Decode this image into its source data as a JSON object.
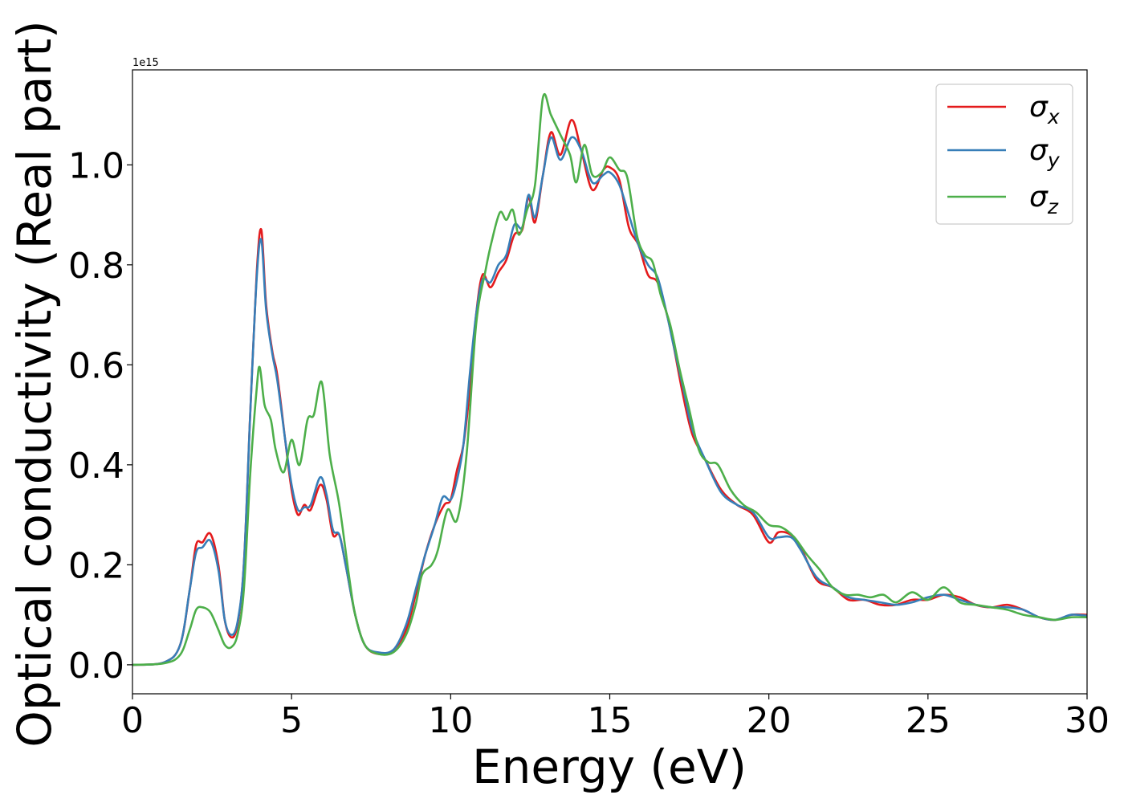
{
  "chart_data": {
    "type": "line",
    "xlabel": "Energy (eV)",
    "ylabel": "Optical conductivity (Real part)",
    "offset_text": "1e15",
    "xlim": [
      0,
      30
    ],
    "ylim": [
      -0.058,
      1.19
    ],
    "y_scale_factor": 1000000000000000.0,
    "xticks": [
      0,
      5,
      10,
      15,
      20,
      25,
      30
    ],
    "xtick_labels": [
      "0",
      "5",
      "10",
      "15",
      "20",
      "25",
      "30"
    ],
    "yticks": [
      0.0,
      0.2,
      0.4,
      0.6,
      0.8,
      1.0
    ],
    "ytick_labels": [
      "0.0",
      "0.2",
      "0.4",
      "0.6",
      "0.8",
      "1.0"
    ],
    "grid": false,
    "legend_position": "top-right",
    "legend": [
      {
        "symbol": "σ",
        "subscript": "x",
        "color": "#e41a1c"
      },
      {
        "symbol": "σ",
        "subscript": "y",
        "color": "#377eb8"
      },
      {
        "symbol": "σ",
        "subscript": "z",
        "color": "#4daf4a"
      }
    ],
    "series": [
      {
        "name": "σx",
        "color": "#e41a1c",
        "points": [
          [
            0,
            0
          ],
          [
            1,
            0.005
          ],
          [
            1.5,
            0.04
          ],
          [
            1.8,
            0.15
          ],
          [
            2.0,
            0.24
          ],
          [
            2.2,
            0.245
          ],
          [
            2.45,
            0.262
          ],
          [
            2.7,
            0.2
          ],
          [
            2.9,
            0.09
          ],
          [
            3.1,
            0.055
          ],
          [
            3.3,
            0.08
          ],
          [
            3.5,
            0.2
          ],
          [
            3.7,
            0.5
          ],
          [
            3.9,
            0.78
          ],
          [
            4.05,
            0.87
          ],
          [
            4.2,
            0.72
          ],
          [
            4.4,
            0.625
          ],
          [
            4.55,
            0.58
          ],
          [
            4.8,
            0.45
          ],
          [
            5.0,
            0.35
          ],
          [
            5.2,
            0.3
          ],
          [
            5.4,
            0.32
          ],
          [
            5.6,
            0.31
          ],
          [
            5.9,
            0.36
          ],
          [
            6.1,
            0.33
          ],
          [
            6.3,
            0.26
          ],
          [
            6.5,
            0.26
          ],
          [
            6.7,
            0.2
          ],
          [
            7.0,
            0.1
          ],
          [
            7.3,
            0.04
          ],
          [
            7.7,
            0.022
          ],
          [
            8.2,
            0.03
          ],
          [
            8.6,
            0.07
          ],
          [
            8.9,
            0.14
          ],
          [
            9.2,
            0.22
          ],
          [
            9.5,
            0.28
          ],
          [
            9.8,
            0.32
          ],
          [
            10.0,
            0.33
          ],
          [
            10.2,
            0.39
          ],
          [
            10.4,
            0.44
          ],
          [
            10.6,
            0.55
          ],
          [
            10.8,
            0.7
          ],
          [
            11.0,
            0.78
          ],
          [
            11.25,
            0.755
          ],
          [
            11.5,
            0.785
          ],
          [
            11.75,
            0.81
          ],
          [
            12.0,
            0.86
          ],
          [
            12.25,
            0.87
          ],
          [
            12.45,
            0.935
          ],
          [
            12.65,
            0.885
          ],
          [
            12.9,
            0.98
          ],
          [
            13.15,
            1.065
          ],
          [
            13.45,
            1.02
          ],
          [
            13.8,
            1.09
          ],
          [
            14.1,
            1.03
          ],
          [
            14.45,
            0.95
          ],
          [
            14.8,
            0.99
          ],
          [
            15.0,
            0.995
          ],
          [
            15.3,
            0.97
          ],
          [
            15.6,
            0.875
          ],
          [
            15.9,
            0.84
          ],
          [
            16.2,
            0.78
          ],
          [
            16.5,
            0.765
          ],
          [
            16.8,
            0.7
          ],
          [
            17.0,
            0.64
          ],
          [
            17.3,
            0.54
          ],
          [
            17.6,
            0.46
          ],
          [
            18.0,
            0.41
          ],
          [
            18.5,
            0.35
          ],
          [
            19.0,
            0.32
          ],
          [
            19.5,
            0.3
          ],
          [
            20.0,
            0.245
          ],
          [
            20.3,
            0.265
          ],
          [
            20.7,
            0.26
          ],
          [
            21.0,
            0.235
          ],
          [
            21.5,
            0.17
          ],
          [
            22.0,
            0.155
          ],
          [
            22.5,
            0.13
          ],
          [
            23.0,
            0.13
          ],
          [
            23.5,
            0.12
          ],
          [
            24.0,
            0.12
          ],
          [
            24.5,
            0.13
          ],
          [
            25.0,
            0.13
          ],
          [
            25.5,
            0.14
          ],
          [
            26.0,
            0.135
          ],
          [
            26.5,
            0.12
          ],
          [
            27.0,
            0.115
          ],
          [
            27.5,
            0.12
          ],
          [
            28.0,
            0.11
          ],
          [
            28.5,
            0.095
          ],
          [
            29.0,
            0.09
          ],
          [
            29.5,
            0.1
          ],
          [
            30.0,
            0.1
          ]
        ]
      },
      {
        "name": "σy",
        "color": "#377eb8",
        "points": [
          [
            0,
            0
          ],
          [
            1,
            0.005
          ],
          [
            1.5,
            0.04
          ],
          [
            1.8,
            0.15
          ],
          [
            2.0,
            0.225
          ],
          [
            2.2,
            0.235
          ],
          [
            2.45,
            0.248
          ],
          [
            2.7,
            0.19
          ],
          [
            2.9,
            0.09
          ],
          [
            3.1,
            0.06
          ],
          [
            3.3,
            0.085
          ],
          [
            3.5,
            0.2
          ],
          [
            3.7,
            0.5
          ],
          [
            3.9,
            0.77
          ],
          [
            4.05,
            0.85
          ],
          [
            4.2,
            0.71
          ],
          [
            4.4,
            0.62
          ],
          [
            4.55,
            0.57
          ],
          [
            4.8,
            0.45
          ],
          [
            5.0,
            0.36
          ],
          [
            5.2,
            0.31
          ],
          [
            5.4,
            0.315
          ],
          [
            5.6,
            0.32
          ],
          [
            5.9,
            0.375
          ],
          [
            6.1,
            0.34
          ],
          [
            6.3,
            0.27
          ],
          [
            6.5,
            0.26
          ],
          [
            6.7,
            0.2
          ],
          [
            7.0,
            0.1
          ],
          [
            7.3,
            0.04
          ],
          [
            7.7,
            0.025
          ],
          [
            8.2,
            0.03
          ],
          [
            8.6,
            0.08
          ],
          [
            8.9,
            0.15
          ],
          [
            9.2,
            0.22
          ],
          [
            9.5,
            0.28
          ],
          [
            9.75,
            0.335
          ],
          [
            10.0,
            0.33
          ],
          [
            10.2,
            0.37
          ],
          [
            10.4,
            0.44
          ],
          [
            10.6,
            0.58
          ],
          [
            10.8,
            0.7
          ],
          [
            11.0,
            0.77
          ],
          [
            11.25,
            0.765
          ],
          [
            11.5,
            0.8
          ],
          [
            11.75,
            0.82
          ],
          [
            12.0,
            0.88
          ],
          [
            12.25,
            0.875
          ],
          [
            12.45,
            0.94
          ],
          [
            12.65,
            0.895
          ],
          [
            12.9,
            0.98
          ],
          [
            13.15,
            1.055
          ],
          [
            13.45,
            1.01
          ],
          [
            13.8,
            1.055
          ],
          [
            14.1,
            1.03
          ],
          [
            14.45,
            0.965
          ],
          [
            14.8,
            0.98
          ],
          [
            15.0,
            0.985
          ],
          [
            15.3,
            0.96
          ],
          [
            15.6,
            0.9
          ],
          [
            15.9,
            0.84
          ],
          [
            16.2,
            0.8
          ],
          [
            16.5,
            0.775
          ],
          [
            16.8,
            0.7
          ],
          [
            17.0,
            0.64
          ],
          [
            17.3,
            0.555
          ],
          [
            17.6,
            0.47
          ],
          [
            18.0,
            0.41
          ],
          [
            18.5,
            0.345
          ],
          [
            19.0,
            0.32
          ],
          [
            19.5,
            0.305
          ],
          [
            20.0,
            0.255
          ],
          [
            20.3,
            0.255
          ],
          [
            20.7,
            0.255
          ],
          [
            21.0,
            0.23
          ],
          [
            21.5,
            0.175
          ],
          [
            22.0,
            0.155
          ],
          [
            22.5,
            0.135
          ],
          [
            23.0,
            0.13
          ],
          [
            23.5,
            0.125
          ],
          [
            24.0,
            0.12
          ],
          [
            24.5,
            0.125
          ],
          [
            25.0,
            0.135
          ],
          [
            25.5,
            0.14
          ],
          [
            26.0,
            0.13
          ],
          [
            26.5,
            0.12
          ],
          [
            27.0,
            0.115
          ],
          [
            27.5,
            0.115
          ],
          [
            28.0,
            0.11
          ],
          [
            28.5,
            0.095
          ],
          [
            29.0,
            0.09
          ],
          [
            29.5,
            0.1
          ],
          [
            30.0,
            0.098
          ]
        ]
      },
      {
        "name": "σz",
        "color": "#4daf4a",
        "points": [
          [
            0,
            0
          ],
          [
            1,
            0.003
          ],
          [
            1.5,
            0.02
          ],
          [
            1.8,
            0.07
          ],
          [
            2.0,
            0.11
          ],
          [
            2.2,
            0.115
          ],
          [
            2.45,
            0.105
          ],
          [
            2.7,
            0.07
          ],
          [
            2.9,
            0.04
          ],
          [
            3.1,
            0.035
          ],
          [
            3.3,
            0.06
          ],
          [
            3.5,
            0.15
          ],
          [
            3.7,
            0.38
          ],
          [
            3.9,
            0.55
          ],
          [
            4.0,
            0.595
          ],
          [
            4.15,
            0.52
          ],
          [
            4.35,
            0.49
          ],
          [
            4.5,
            0.43
          ],
          [
            4.75,
            0.385
          ],
          [
            5.0,
            0.45
          ],
          [
            5.25,
            0.4
          ],
          [
            5.5,
            0.49
          ],
          [
            5.7,
            0.5
          ],
          [
            5.95,
            0.565
          ],
          [
            6.2,
            0.42
          ],
          [
            6.5,
            0.32
          ],
          [
            6.8,
            0.18
          ],
          [
            7.0,
            0.1
          ],
          [
            7.3,
            0.04
          ],
          [
            7.7,
            0.022
          ],
          [
            8.2,
            0.025
          ],
          [
            8.6,
            0.06
          ],
          [
            8.9,
            0.12
          ],
          [
            9.1,
            0.18
          ],
          [
            9.4,
            0.2
          ],
          [
            9.6,
            0.23
          ],
          [
            9.9,
            0.31
          ],
          [
            10.2,
            0.29
          ],
          [
            10.5,
            0.42
          ],
          [
            10.8,
            0.68
          ],
          [
            11.1,
            0.79
          ],
          [
            11.3,
            0.85
          ],
          [
            11.55,
            0.905
          ],
          [
            11.75,
            0.89
          ],
          [
            11.95,
            0.91
          ],
          [
            12.15,
            0.86
          ],
          [
            12.4,
            0.91
          ],
          [
            12.65,
            0.96
          ],
          [
            12.9,
            1.135
          ],
          [
            13.15,
            1.1
          ],
          [
            13.45,
            1.06
          ],
          [
            13.75,
            1.02
          ],
          [
            13.95,
            0.965
          ],
          [
            14.2,
            1.04
          ],
          [
            14.45,
            0.98
          ],
          [
            14.75,
            0.985
          ],
          [
            15.0,
            1.015
          ],
          [
            15.3,
            0.99
          ],
          [
            15.55,
            0.975
          ],
          [
            15.85,
            0.86
          ],
          [
            16.1,
            0.82
          ],
          [
            16.35,
            0.805
          ],
          [
            16.6,
            0.74
          ],
          [
            16.9,
            0.68
          ],
          [
            17.2,
            0.59
          ],
          [
            17.5,
            0.51
          ],
          [
            17.8,
            0.43
          ],
          [
            18.1,
            0.405
          ],
          [
            18.4,
            0.4
          ],
          [
            18.8,
            0.35
          ],
          [
            19.2,
            0.32
          ],
          [
            19.6,
            0.305
          ],
          [
            20.0,
            0.28
          ],
          [
            20.4,
            0.275
          ],
          [
            20.8,
            0.255
          ],
          [
            21.2,
            0.22
          ],
          [
            21.6,
            0.19
          ],
          [
            22.0,
            0.155
          ],
          [
            22.4,
            0.14
          ],
          [
            22.8,
            0.14
          ],
          [
            23.2,
            0.135
          ],
          [
            23.6,
            0.14
          ],
          [
            24.0,
            0.125
          ],
          [
            24.5,
            0.145
          ],
          [
            25.0,
            0.13
          ],
          [
            25.5,
            0.155
          ],
          [
            26.0,
            0.125
          ],
          [
            26.5,
            0.12
          ],
          [
            27.0,
            0.115
          ],
          [
            27.5,
            0.11
          ],
          [
            28.0,
            0.1
          ],
          [
            28.5,
            0.095
          ],
          [
            29.0,
            0.09
          ],
          [
            29.5,
            0.095
          ],
          [
            30.0,
            0.095
          ]
        ]
      }
    ]
  }
}
